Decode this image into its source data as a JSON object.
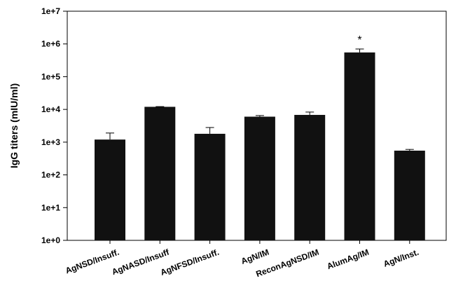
{
  "chart_data": {
    "type": "bar",
    "ylabel": "IgG titers (mIU/ml)",
    "xlabel": "",
    "yscale": "log10",
    "ylim": [
      1,
      10000000
    ],
    "yticks": [
      {
        "value": 1,
        "label": "1e+0"
      },
      {
        "value": 10,
        "label": "1e+1"
      },
      {
        "value": 100,
        "label": "1e+2"
      },
      {
        "value": 1000,
        "label": "1e+3"
      },
      {
        "value": 10000,
        "label": "1e+4"
      },
      {
        "value": 100000,
        "label": "1e+5"
      },
      {
        "value": 1000000,
        "label": "1e+6"
      },
      {
        "value": 10000000,
        "label": "1e+7"
      }
    ],
    "categories": [
      "AgNSD/Insuff.",
      "AgNASD/Insuff",
      "AgNFSD/Insuff.",
      "AgN/IM",
      "ReconAgNSD/IM",
      "AlumAg/IM",
      "AgN/Inst."
    ],
    "values": [
      1200,
      12000,
      1800,
      6000,
      6800,
      550000,
      550
    ],
    "error_upper": [
      1900,
      12200,
      2800,
      6500,
      8300,
      700000,
      600
    ],
    "annotations": [
      {
        "category": "AlumAg/IM",
        "text": "*"
      }
    ],
    "bar_color": "#111111",
    "grid": false
  }
}
